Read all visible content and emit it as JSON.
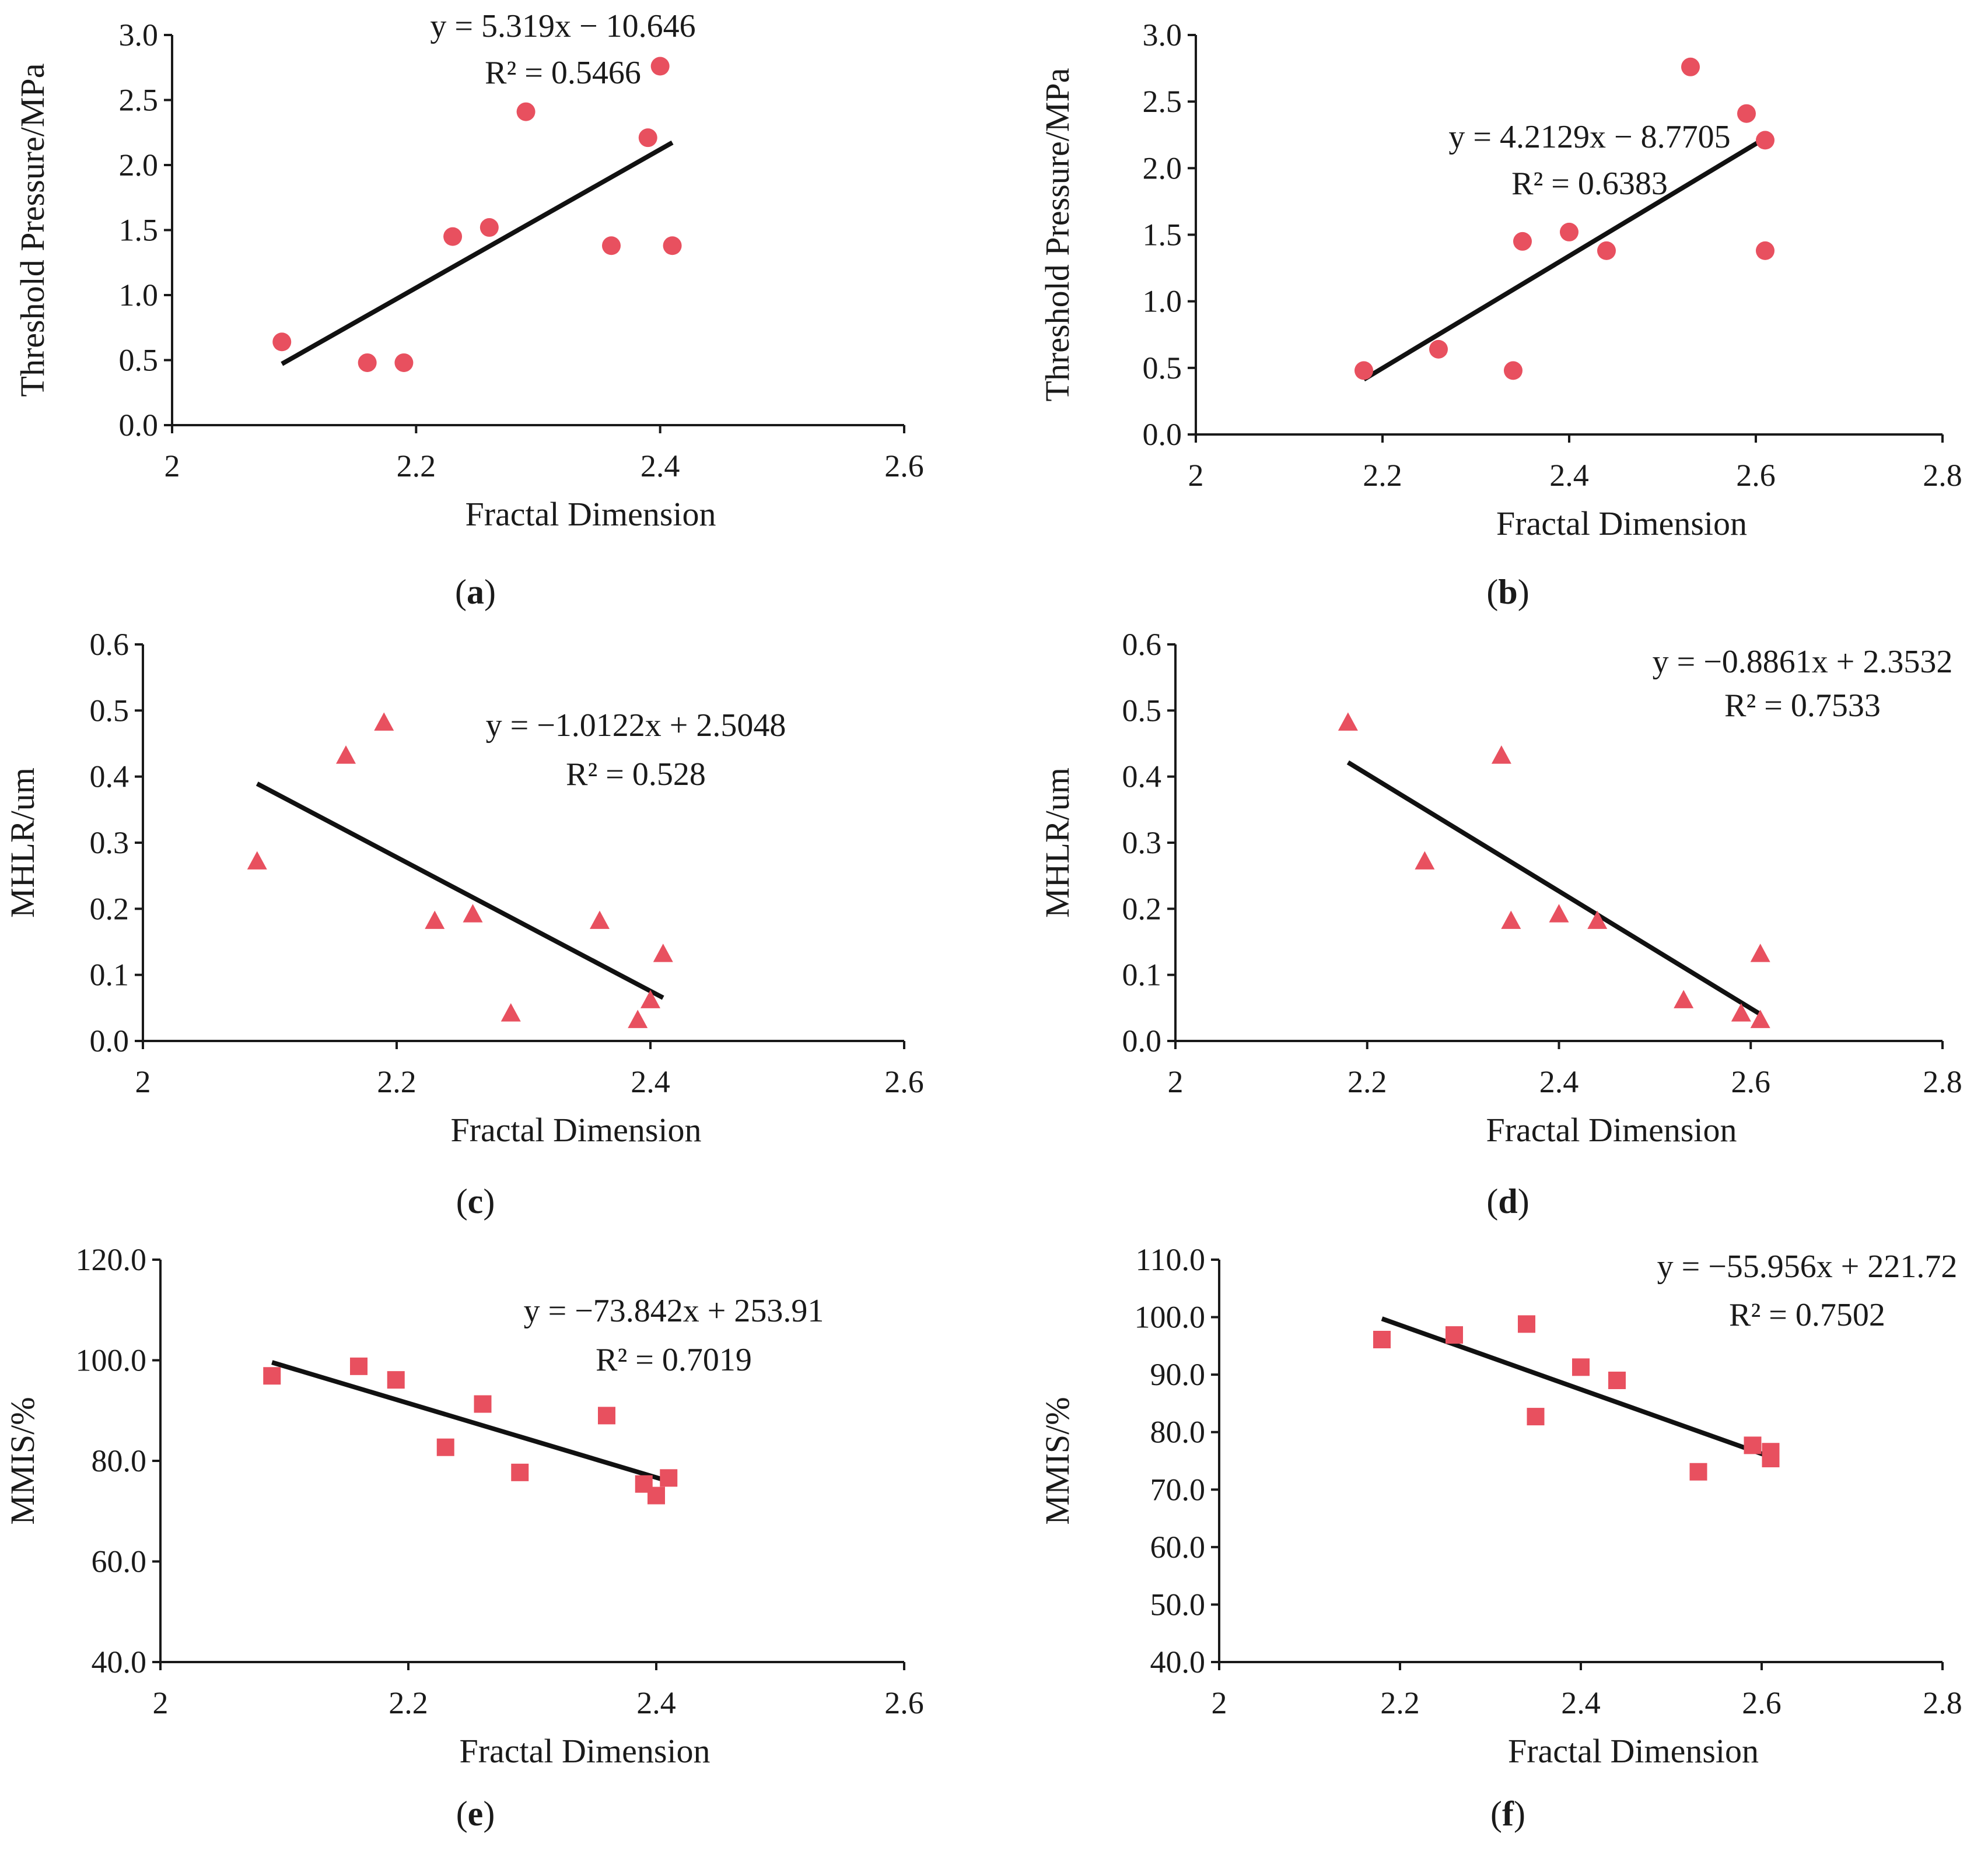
{
  "figure": {
    "colors": {
      "marker": "#e8505f",
      "trendline": "#111111",
      "axis": "#1a1a1a"
    },
    "panels": [
      {
        "id": "a",
        "label_open": "(",
        "label_letter": "a",
        "label_close": ")",
        "chart_data": {
          "type": "scatter",
          "marker": "circle",
          "xlabel": "Fractal Dimension",
          "ylabel": "Threshold Pressure/MPa",
          "xlim": [
            2,
            2.6
          ],
          "ylim": [
            0,
            3.0
          ],
          "xticks": [
            "2",
            "2.2",
            "2.4",
            "2.6"
          ],
          "yticks": [
            "0.0",
            "0.5",
            "1.0",
            "1.5",
            "2.0",
            "2.5",
            "3.0"
          ],
          "x": [
            2.09,
            2.16,
            2.19,
            2.23,
            2.26,
            2.29,
            2.36,
            2.39,
            2.4,
            2.41
          ],
          "y": [
            0.64,
            0.48,
            0.48,
            1.45,
            1.52,
            2.41,
            1.38,
            2.21,
            2.76,
            1.38
          ],
          "trendline": {
            "slope": 5.319,
            "intercept": -10.646,
            "x_range": [
              2.09,
              2.41
            ]
          },
          "equation": "y = 5.319x − 10.646",
          "r2": "R² = 0.5466",
          "grid": false
        }
      },
      {
        "id": "b",
        "label_open": "(",
        "label_letter": "b",
        "label_close": ")",
        "chart_data": {
          "type": "scatter",
          "marker": "circle",
          "xlabel": "Fractal Dimension",
          "ylabel": "Threshold Pressure/MPa",
          "xlim": [
            2,
            2.8
          ],
          "ylim": [
            0,
            3.0
          ],
          "xticks": [
            "2",
            "2.2",
            "2.4",
            "2.6",
            "2.8"
          ],
          "yticks": [
            "0.0",
            "0.5",
            "1.0",
            "1.5",
            "2.0",
            "2.5",
            "3.0"
          ],
          "x": [
            2.18,
            2.26,
            2.34,
            2.35,
            2.4,
            2.44,
            2.53,
            2.59,
            2.61,
            2.61
          ],
          "y": [
            0.48,
            0.64,
            0.48,
            1.45,
            1.52,
            1.38,
            2.76,
            2.41,
            2.21,
            1.38
          ],
          "trendline": {
            "slope": 4.2129,
            "intercept": -8.7705,
            "x_range": [
              2.18,
              2.61
            ]
          },
          "equation": "y = 4.2129x − 8.7705",
          "r2": "R² = 0.6383",
          "grid": false
        }
      },
      {
        "id": "c",
        "label_open": "(",
        "label_letter": "c",
        "label_close": ")",
        "chart_data": {
          "type": "scatter",
          "marker": "triangle",
          "xlabel": "Fractal Dimension",
          "ylabel": "MHLR/um",
          "xlim": [
            2,
            2.6
          ],
          "ylim": [
            0,
            0.6
          ],
          "xticks": [
            "2",
            "2.2",
            "2.4",
            "2.6"
          ],
          "yticks": [
            "0.0",
            "0.1",
            "0.2",
            "0.3",
            "0.4",
            "0.5",
            "0.6"
          ],
          "x": [
            2.09,
            2.16,
            2.19,
            2.23,
            2.26,
            2.29,
            2.36,
            2.39,
            2.4,
            2.41
          ],
          "y": [
            0.27,
            0.43,
            0.48,
            0.18,
            0.19,
            0.04,
            0.18,
            0.03,
            0.06,
            0.13
          ],
          "trendline": {
            "slope": -1.0122,
            "intercept": 2.5048,
            "x_range": [
              2.09,
              2.41
            ]
          },
          "equation": "y = −1.0122x + 2.5048",
          "r2": "R² = 0.528",
          "grid": false
        }
      },
      {
        "id": "d",
        "label_open": "(",
        "label_letter": "d",
        "label_close": ")",
        "chart_data": {
          "type": "scatter",
          "marker": "triangle",
          "xlabel": "Fractal Dimension",
          "ylabel": "MHLR/um",
          "xlim": [
            2,
            2.8
          ],
          "ylim": [
            0,
            0.6
          ],
          "xticks": [
            "2",
            "2.2",
            "2.4",
            "2.6",
            "2.8"
          ],
          "yticks": [
            "0.0",
            "0.1",
            "0.2",
            "0.3",
            "0.4",
            "0.5",
            "0.6"
          ],
          "x": [
            2.18,
            2.26,
            2.34,
            2.35,
            2.4,
            2.44,
            2.53,
            2.59,
            2.61,
            2.61
          ],
          "y": [
            0.48,
            0.27,
            0.43,
            0.18,
            0.19,
            0.18,
            0.06,
            0.04,
            0.13,
            0.03
          ],
          "trendline": {
            "slope": -0.8861,
            "intercept": 2.3532,
            "x_range": [
              2.18,
              2.61
            ]
          },
          "equation": "y = −0.8861x + 2.3532",
          "r2": "R² = 0.7533",
          "grid": false
        }
      },
      {
        "id": "e",
        "label_open": "(",
        "label_letter": "e",
        "label_close": ")",
        "chart_data": {
          "type": "scatter",
          "marker": "square",
          "xlabel": "Fractal Dimension",
          "ylabel": "MMIS/%",
          "xlim": [
            2,
            2.6
          ],
          "ylim": [
            40,
            120
          ],
          "xticks": [
            "2",
            "2.2",
            "2.4",
            "2.6"
          ],
          "yticks": [
            "40.0",
            "60.0",
            "80.0",
            "100.0",
            "120.0"
          ],
          "x": [
            2.09,
            2.16,
            2.19,
            2.23,
            2.26,
            2.29,
            2.36,
            2.39,
            2.4,
            2.41
          ],
          "y": [
            96.9,
            98.8,
            96.1,
            82.7,
            91.3,
            77.7,
            89.0,
            75.4,
            73.1,
            76.6
          ],
          "trendline": {
            "slope": -73.842,
            "intercept": 253.91,
            "x_range": [
              2.09,
              2.41
            ]
          },
          "equation": "y = −73.842x + 253.91",
          "r2": "R² = 0.7019",
          "grid": false
        }
      },
      {
        "id": "f",
        "label_open": "(",
        "label_letter": "f",
        "label_close": ")",
        "chart_data": {
          "type": "scatter",
          "marker": "square",
          "xlabel": "Fractal Dimension",
          "ylabel": "MMIS/%",
          "xlim": [
            2,
            2.8
          ],
          "ylim": [
            40,
            110
          ],
          "xticks": [
            "2",
            "2.2",
            "2.4",
            "2.6",
            "2.8"
          ],
          "yticks": [
            "40.0",
            "50.0",
            "60.0",
            "70.0",
            "80.0",
            "90.0",
            "100.0",
            "110.0"
          ],
          "x": [
            2.18,
            2.26,
            2.34,
            2.35,
            2.4,
            2.44,
            2.53,
            2.59,
            2.61,
            2.61
          ],
          "y": [
            96.1,
            96.9,
            98.8,
            82.7,
            91.3,
            89.0,
            73.1,
            77.7,
            76.6,
            75.4
          ],
          "trendline": {
            "slope": -55.956,
            "intercept": 221.72,
            "x_range": [
              2.18,
              2.61
            ]
          },
          "equation": "y = −55.956x + 221.72",
          "r2": "R² = 0.7502",
          "grid": false
        }
      }
    ]
  }
}
